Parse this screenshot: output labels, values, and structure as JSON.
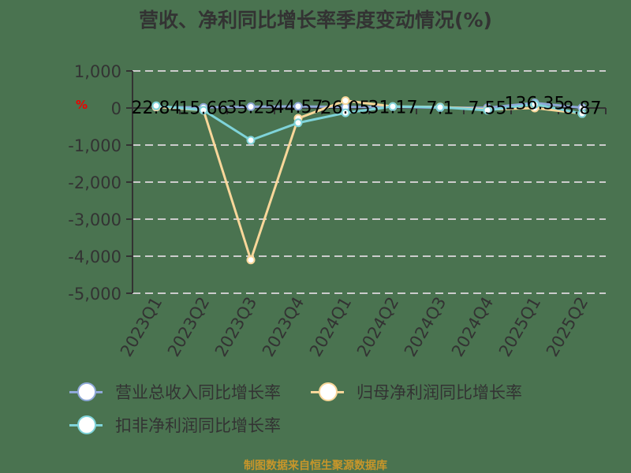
{
  "title": "营收、净利同比增长率季度变动情况(%)",
  "unit_label": "%",
  "footer": "制图数据来自恒生聚源数据库",
  "colors": {
    "revenue": "#8fa8d8",
    "net_profit": "#f9d79a",
    "deducted_net_profit": "#7fd3d9",
    "grid": "#cccccc",
    "axis": "#333333",
    "footer": "#c8962a"
  },
  "legend": [
    {
      "name": "营业总收入同比增长率",
      "color": "#8fa8d8"
    },
    {
      "name": "归母净利润同比增长率",
      "color": "#f9d79a"
    },
    {
      "name": "扣非净利润同比增长率",
      "color": "#7fd3d9"
    }
  ],
  "chart_data": {
    "type": "line",
    "title": "营收、净利同比增长率季度变动情况(%)",
    "xlabel": "",
    "ylabel": "%",
    "ylim": [
      -5000,
      1000
    ],
    "yticks": [
      1000,
      0,
      -1000,
      -2000,
      -3000,
      -4000,
      -5000
    ],
    "ytick_labels": [
      "1,000",
      "0",
      "-1,000",
      "-2,000",
      "-3,000",
      "-4,000",
      "-5,000"
    ],
    "grid": true,
    "legend_position": "bottom",
    "categories": [
      "2023Q1",
      "2023Q2",
      "2023Q3",
      "2023Q4",
      "2024Q1",
      "2024Q2",
      "2024Q3",
      "2024Q4",
      "2025Q1",
      "2025Q2"
    ],
    "series": [
      {
        "name": "营业总收入同比增长率",
        "values": [
          22.84,
          15.66,
          35.25,
          44.57,
          26.05,
          31.17,
          7.1,
          7.55,
          136.35,
          8.87
        ],
        "data_labels": [
          "22.84",
          "15.66",
          "35.25",
          "44.57",
          "26.05",
          "31.17",
          "7.1",
          "7.55",
          "136.35",
          "8.87"
        ]
      },
      {
        "name": "归母净利润同比增长率",
        "values": [
          30,
          -60,
          -4100,
          -280,
          200,
          40,
          30,
          -40,
          0,
          -150
        ]
      },
      {
        "name": "扣非净利润同比增长率",
        "values": [
          60,
          -60,
          -870,
          -400,
          -130,
          40,
          20,
          -60,
          100,
          -150
        ]
      }
    ]
  }
}
